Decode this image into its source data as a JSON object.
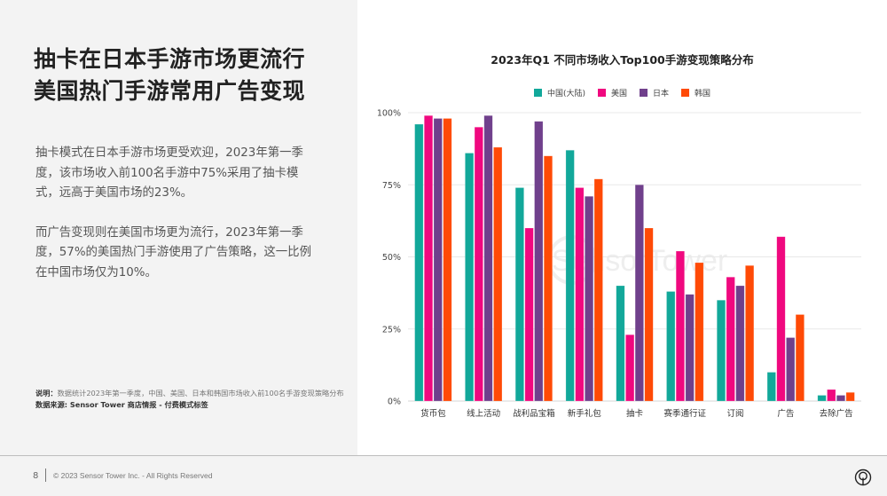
{
  "headline": {
    "line1": "抽卡在日本手游市场更流行",
    "line2": "美国热门手游常用广告变现"
  },
  "body": {
    "paragraph1": "抽卡模式在日本手游市场更受欢迎，2023年第一季度，该市场收入前100名手游中75%采用了抽卡模式，远高于美国市场的23%。",
    "paragraph2": "而广告变现则在美国市场更为流行，2023年第一季度，57%的美国热门手游使用了广告策略，这一比例在中国市场仅为10%。"
  },
  "note": {
    "label": "说明：",
    "text": "数据统计2023年第一季度，中国、美国、日本和韩国市场收入前100名手游变现策略分布",
    "source_label": "数据来源: Sensor Tower 商店情报 - 付费模式标签"
  },
  "footer": {
    "page_number": "8",
    "copyright": "© 2023 Sensor Tower Inc. - All Rights Reserved",
    "logo_icon": "sensor-tower-logo-icon"
  },
  "watermark": "SensorTower",
  "chart_data": {
    "type": "bar",
    "title": "2023年Q1 不同市场收入Top100手游变现策略分布",
    "xlabel": "",
    "ylabel": "",
    "ylim": [
      0,
      100
    ],
    "yticks": [
      0,
      25,
      50,
      75,
      100
    ],
    "ytick_labels": [
      "0%",
      "25%",
      "50%",
      "75%",
      "100%"
    ],
    "grid": true,
    "legend_position": "top-center",
    "categories": [
      "货币包",
      "线上活动",
      "战利品宝箱",
      "新手礼包",
      "抽卡",
      "赛季通行证",
      "订阅",
      "广告",
      "去除广告"
    ],
    "series": [
      {
        "name": "中国(大陆)",
        "color": "#12a89a",
        "values": [
          96,
          86,
          74,
          87,
          40,
          38,
          35,
          10,
          2
        ]
      },
      {
        "name": "美国",
        "color": "#f0087f",
        "values": [
          99,
          95,
          60,
          74,
          23,
          52,
          43,
          57,
          4
        ]
      },
      {
        "name": "日本",
        "color": "#70408c",
        "values": [
          98,
          99,
          97,
          71,
          75,
          37,
          40,
          22,
          2
        ]
      },
      {
        "name": "韩国",
        "color": "#ff4a06",
        "values": [
          98,
          88,
          85,
          77,
          60,
          48,
          47,
          30,
          3
        ]
      }
    ]
  }
}
